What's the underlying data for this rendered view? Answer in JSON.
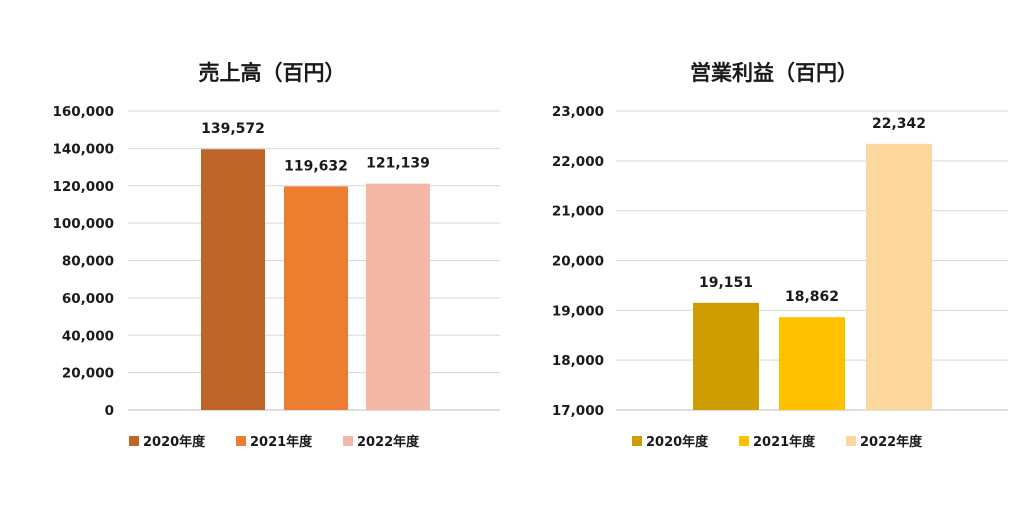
{
  "chart_data": [
    {
      "type": "bar",
      "title": "売上高（百円）",
      "categories": [
        "2020年度",
        "2021年度",
        "2022年度"
      ],
      "values": [
        139572,
        119632,
        121139
      ],
      "data_labels": [
        "139,572",
        "119,632",
        "121,139"
      ],
      "colors": [
        "#C0652A",
        "#ED7D31",
        "#F4B9A6"
      ],
      "ylim": [
        0,
        160000
      ],
      "yticks": [
        0,
        20000,
        40000,
        60000,
        80000,
        100000,
        120000,
        140000,
        160000
      ],
      "ytick_labels": [
        "0",
        "20,000",
        "40,000",
        "60,000",
        "80,000",
        "100,000",
        "120,000",
        "140,000",
        "160,000"
      ],
      "grid": true,
      "legend": "bottom"
    },
    {
      "type": "bar",
      "title": "営業利益（百円）",
      "categories": [
        "2020年度",
        "2021年度",
        "2022年度"
      ],
      "values": [
        19151,
        18862,
        22342
      ],
      "data_labels": [
        "19,151",
        "18,862",
        "22,342"
      ],
      "colors": [
        "#CF9D00",
        "#FFC000",
        "#FDD89E"
      ],
      "ylim": [
        17000,
        23000
      ],
      "yticks": [
        17000,
        18000,
        19000,
        20000,
        21000,
        22000,
        23000
      ],
      "ytick_labels": [
        "17,000",
        "18,000",
        "19,000",
        "20,000",
        "21,000",
        "22,000",
        "23,000"
      ],
      "grid": true,
      "legend": "bottom"
    }
  ]
}
